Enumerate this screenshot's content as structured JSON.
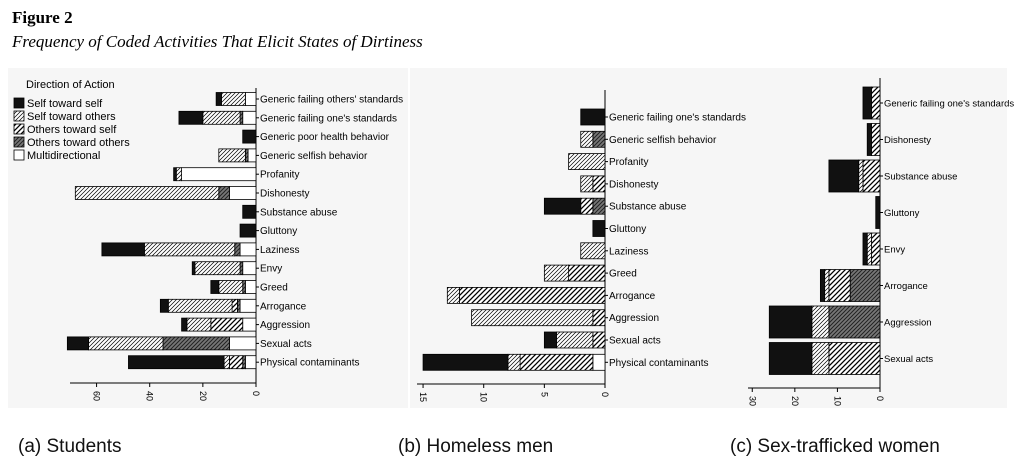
{
  "figure": {
    "label": "Figure 2",
    "caption": "Frequency of Coded Activities That Elicit States of Dirtiness"
  },
  "legend": {
    "title": "Direction of Action",
    "items": [
      {
        "key": "sts",
        "label": "Self toward self"
      },
      {
        "key": "sto",
        "label": "Self toward others"
      },
      {
        "key": "ots",
        "label": "Others toward self"
      },
      {
        "key": "oto",
        "label": "Others toward others"
      },
      {
        "key": "multi",
        "label": "Multidirectional"
      }
    ]
  },
  "chart_data": [
    {
      "type": "bar",
      "orientation": "horizontal-reversed",
      "panel_label": "(a) Students",
      "xlim": [
        0,
        70
      ],
      "ticks": [
        0,
        20,
        40,
        60
      ],
      "stack_order": [
        "multi",
        "oto",
        "ots",
        "sto",
        "sts"
      ],
      "categories": [
        "Generic failing others' standards",
        "Generic failing one's standards",
        "Generic poor health behavior",
        "Generic selfish behavior",
        "Profanity",
        "Dishonesty",
        "Substance abuse",
        "Gluttony",
        "Laziness",
        "Envy",
        "Greed",
        "Arrogance",
        "Aggression",
        "Sexual acts",
        "Physical contaminants"
      ],
      "series": [
        {
          "name": "Multidirectional",
          "values": [
            4,
            5,
            0,
            3,
            28,
            10,
            0,
            0,
            6,
            5,
            4,
            6,
            5,
            10,
            4
          ]
        },
        {
          "name": "Others toward others",
          "values": [
            0,
            1,
            0,
            1,
            0,
            4,
            0,
            0,
            2,
            1,
            1,
            1,
            0,
            25,
            1
          ]
        },
        {
          "name": "Others toward self",
          "values": [
            0,
            0,
            0,
            0,
            0,
            0,
            0,
            0,
            0,
            0,
            0,
            2,
            12,
            0,
            5
          ]
        },
        {
          "name": "Self toward others",
          "values": [
            9,
            14,
            0,
            10,
            2,
            54,
            0,
            0,
            34,
            17,
            9,
            24,
            9,
            28,
            2
          ]
        },
        {
          "name": "Self toward self",
          "values": [
            2,
            9,
            5,
            0,
            1,
            0,
            5,
            6,
            16,
            1,
            3,
            3,
            2,
            8,
            36
          ]
        }
      ]
    },
    {
      "type": "bar",
      "orientation": "horizontal-reversed",
      "panel_label": "(b) Homeless men",
      "xlim": [
        0,
        15.5
      ],
      "ticks": [
        0,
        5,
        10,
        15
      ],
      "stack_order": [
        "multi",
        "oto",
        "ots",
        "sto",
        "sts"
      ],
      "categories": [
        "Generic failing one's standards",
        "Generic selfish behavior",
        "Profanity",
        "Dishonesty",
        "Substance abuse",
        "Gluttony",
        "Laziness",
        "Greed",
        "Arrogance",
        "Aggression",
        "Sexual acts",
        "Physical contaminants"
      ],
      "series": [
        {
          "name": "Multidirectional",
          "values": [
            0,
            0,
            0,
            0,
            0,
            0,
            0,
            0,
            0,
            0,
            0,
            1
          ]
        },
        {
          "name": "Others toward others",
          "values": [
            0,
            1,
            0,
            0,
            1,
            0,
            0,
            0,
            0,
            0,
            0,
            0
          ]
        },
        {
          "name": "Others toward self",
          "values": [
            0,
            0,
            0,
            1,
            1,
            0,
            0,
            3,
            12,
            1,
            1,
            6
          ]
        },
        {
          "name": "Self toward others",
          "values": [
            0,
            1,
            3,
            1,
            0,
            0,
            2,
            2,
            1,
            10,
            3,
            1
          ]
        },
        {
          "name": "Self toward self",
          "values": [
            2,
            0,
            0,
            0,
            3,
            1,
            0,
            0,
            0,
            0,
            1,
            7
          ]
        }
      ]
    },
    {
      "type": "bar",
      "orientation": "horizontal-reversed",
      "panel_label": "(c) Sex-trafficked women",
      "xlim": [
        0,
        31
      ],
      "ticks": [
        0,
        10,
        20,
        30
      ],
      "stack_order": [
        "multi",
        "oto",
        "ots",
        "sto",
        "sts"
      ],
      "categories": [
        "Generic failing one's standards",
        "Dishonesty",
        "Substance abuse",
        "Gluttony",
        "Envy",
        "Arrogance",
        "Aggression",
        "Sexual acts"
      ],
      "series": [
        {
          "name": "Multidirectional",
          "values": [
            0,
            0,
            0,
            0,
            0,
            0,
            0,
            0
          ]
        },
        {
          "name": "Others toward others",
          "values": [
            0,
            0,
            0,
            0,
            0,
            7,
            12,
            0
          ]
        },
        {
          "name": "Others toward self",
          "values": [
            2,
            2,
            4,
            0,
            2,
            5,
            0,
            12
          ]
        },
        {
          "name": "Self toward others",
          "values": [
            0,
            0,
            1,
            0,
            1,
            1,
            4,
            4
          ]
        },
        {
          "name": "Self toward self",
          "values": [
            2,
            1,
            7,
            1,
            1,
            1,
            10,
            10
          ]
        }
      ]
    }
  ],
  "colors": {
    "sts": "#111111",
    "sto": "#ffffff",
    "ots": "#ffffff",
    "oto": "#555555",
    "multi": "#ffffff",
    "stroke": "#000000"
  }
}
